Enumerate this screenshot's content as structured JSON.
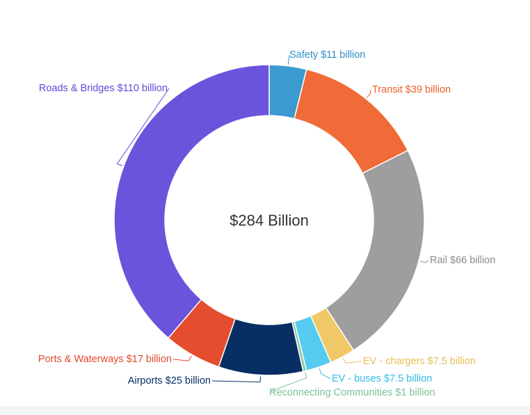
{
  "chart_data": {
    "type": "pie",
    "variant": "donut",
    "center_label": "$284 Billion",
    "unit": "billion USD",
    "slices": [
      {
        "label": "Safety $11 billion",
        "value": 11,
        "color": "#3b9ad0"
      },
      {
        "label": "Transit $39 billion",
        "value": 39,
        "color": "#f06b37"
      },
      {
        "label": "Rail $66 billion",
        "value": 66,
        "color": "#9e9e9e"
      },
      {
        "label": "EV - chargers $7.5 billion",
        "value": 7.5,
        "color": "#f0c867"
      },
      {
        "label": "EV - buses $7.5 billion",
        "value": 7.5,
        "color": "#56cbf2"
      },
      {
        "label": "Reconnecting Communities $1 billion",
        "value": 1,
        "color": "#8bc9a4"
      },
      {
        "label": "Airports $25 billion",
        "value": 25,
        "color": "#082f63"
      },
      {
        "label": "Ports & Waterways $17 billion",
        "value": 17,
        "color": "#e44d2e"
      },
      {
        "label": "Roads & Bridges $110 billion",
        "value": 110,
        "color": "#6c53db"
      }
    ],
    "label_colors": {
      "Safety": "#2d8fc7",
      "Transit": "#e8602a",
      "Rail": "#8a8a8a",
      "EV - chargers": "#e8be55",
      "EV - buses": "#35b9e8",
      "Reconnecting Communities": "#7bbf96",
      "Airports": "#082f63",
      "Ports & Waterways": "#e0482a",
      "Roads & Bridges": "#6148d8"
    }
  }
}
